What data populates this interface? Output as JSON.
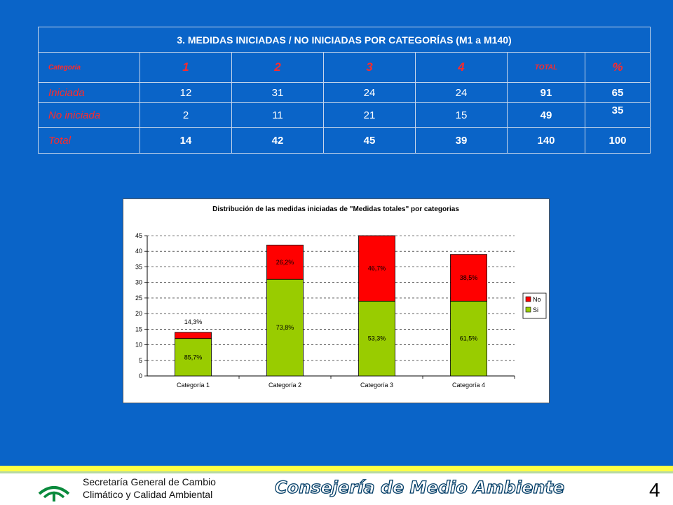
{
  "table": {
    "title": "3. MEDIDAS INICIADAS / NO INICIADAS POR CATEGORÍAS (M1 a M140)",
    "headers": [
      "Categoría",
      "1",
      "2",
      "3",
      "4",
      "TOTAL",
      "%"
    ],
    "rows": [
      {
        "label": "Iniciada",
        "values": [
          "12",
          "31",
          "24",
          "24"
        ],
        "total": "91",
        "pct": "65"
      },
      {
        "label": "No iniciada",
        "values": [
          "2",
          "11",
          "21",
          "15"
        ],
        "total": "49",
        "pct": "35"
      },
      {
        "label": "Total",
        "values": [
          "14",
          "42",
          "45",
          "39"
        ],
        "total": "140",
        "pct": "100"
      }
    ]
  },
  "chart_data": {
    "type": "bar",
    "stacked": true,
    "title": "Distribución de las medidas iniciadas de \"Medidas totales\" por categorias",
    "categories": [
      "Categoría 1",
      "Categoría 2",
      "Categoría 3",
      "Categoría 4"
    ],
    "series": [
      {
        "name": "Si",
        "values": [
          12,
          31,
          24,
          24
        ],
        "labels": [
          "85,7%",
          "73,8%",
          "53,3%",
          "61,5%"
        ],
        "color": "#99cc00"
      },
      {
        "name": "No",
        "values": [
          2,
          11,
          21,
          15
        ],
        "labels": [
          "14,3%",
          "26,2%",
          "46,7%",
          "38,5%"
        ],
        "color": "#ff0000"
      }
    ],
    "ylim": [
      0,
      45
    ],
    "yticks": [
      0,
      5,
      10,
      15,
      20,
      25,
      30,
      35,
      40,
      45
    ],
    "grid": true,
    "legend": "right"
  },
  "footer": {
    "org_line1": "Secretaría General de Cambio",
    "org_line2": "Climático y Calidad Ambiental",
    "ministry": "Consejería de Medio Ambiente",
    "page_number": "4"
  },
  "colors": {
    "background": "#0a64c8",
    "accent": "#ffff44",
    "header_text": "#ff2a2a"
  }
}
